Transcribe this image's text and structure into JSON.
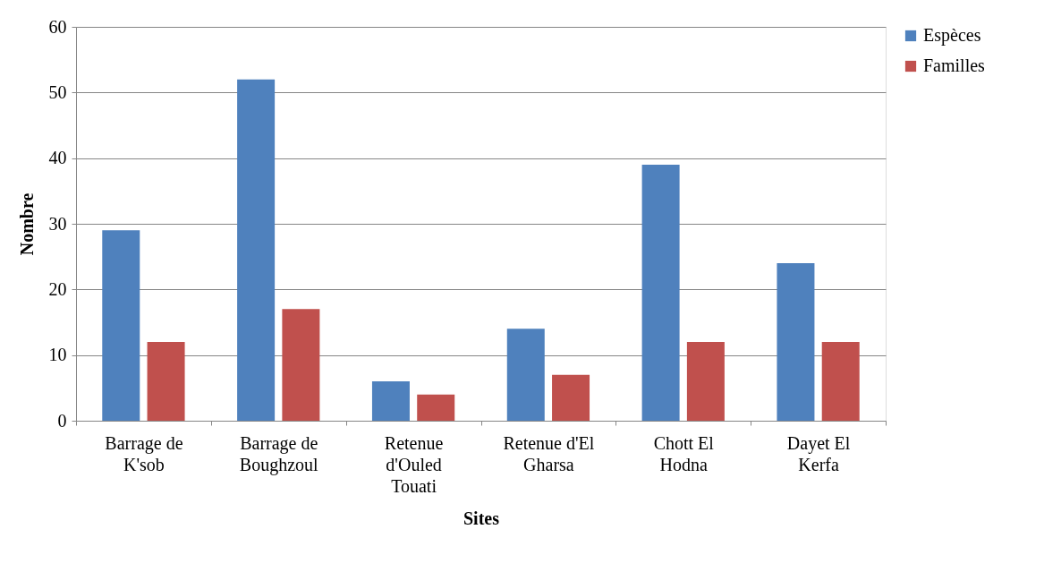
{
  "chart_data": {
    "type": "bar",
    "xlabel": "Sites",
    "ylabel": "Nombre",
    "categories": [
      "Barrage de K'sob",
      "Barrage de Boughzoul",
      "Retenue d'Ouled Touati",
      "Retenue d'El Gharsa",
      "Chott El Hodna",
      "Dayet El Kerfa"
    ],
    "series": [
      {
        "name": "Espèces",
        "color": "#4f81bd",
        "values": [
          29,
          52,
          6,
          14,
          39,
          24
        ]
      },
      {
        "name": "Familles",
        "color": "#c0504d",
        "values": [
          12,
          17,
          4,
          7,
          12,
          12
        ]
      }
    ],
    "ylim": [
      0,
      60
    ],
    "yticks": [
      0,
      10,
      20,
      30,
      40,
      50,
      60
    ],
    "grid": "y",
    "legend": "right"
  }
}
